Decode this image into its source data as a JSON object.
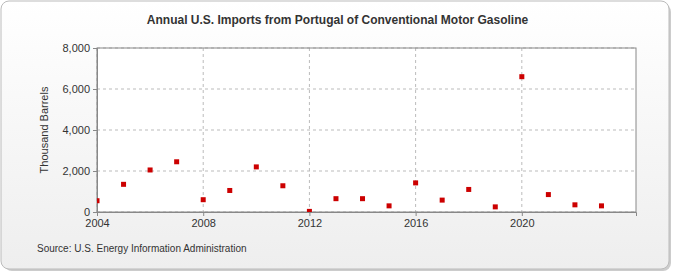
{
  "chart_data": {
    "type": "scatter",
    "title": "Annual U.S. Imports from Portugal of Conventional Motor Gasoline",
    "y_label": "Thousand Barrels",
    "annotations": [
      "Source: U.S. Energy Information Administration"
    ],
    "x": [
      2004,
      2005,
      2006,
      2007,
      2008,
      2009,
      2010,
      2011,
      2012,
      2013,
      2014,
      2015,
      2016,
      2017,
      2018,
      2019,
      2020,
      2021,
      2022,
      2023
    ],
    "values": [
      550,
      1350,
      2050,
      2450,
      600,
      1050,
      2200,
      1280,
      30,
      650,
      650,
      300,
      1420,
      580,
      1100,
      250,
      6600,
      850,
      350,
      300
    ],
    "color": "#cc0000",
    "marker": "square",
    "xlim": [
      2004,
      2024.3
    ],
    "xticks": [
      2004,
      2008,
      2012,
      2016,
      2020
    ],
    "ylim": [
      0,
      8000
    ],
    "yticks": [
      0,
      {
        "value": 2000,
        "label": "2,000"
      },
      {
        "value": 4000,
        "label": "4,000"
      },
      {
        "value": 6000,
        "label": "6,000"
      },
      {
        "value": 8000,
        "label": "8,000"
      }
    ],
    "grid": true
  }
}
